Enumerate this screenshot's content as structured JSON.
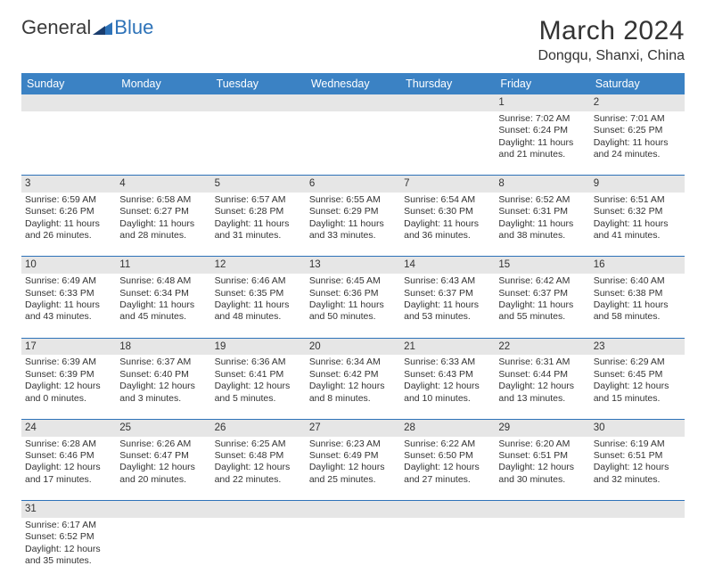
{
  "brand": {
    "general": "General",
    "blue": "Blue"
  },
  "title": {
    "month": "March 2024",
    "location": "Dongqu, Shanxi, China"
  },
  "colors": {
    "header_bg": "#3b82c4",
    "header_text": "#ffffff",
    "daynum_bg": "#e6e6e6",
    "border": "#2d72b8",
    "text": "#333333",
    "logo_blue": "#2d72b8"
  },
  "typography": {
    "month_fontsize": 30,
    "location_fontsize": 16,
    "dayheader_fontsize": 12.5,
    "cell_fontsize": 10.5,
    "daynum_fontsize": 11.5
  },
  "day_headers": [
    "Sunday",
    "Monday",
    "Tuesday",
    "Wednesday",
    "Thursday",
    "Friday",
    "Saturday"
  ],
  "weeks": [
    {
      "nums": [
        "",
        "",
        "",
        "",
        "",
        "1",
        "2"
      ],
      "cells": [
        null,
        null,
        null,
        null,
        null,
        {
          "sr": "Sunrise: 7:02 AM",
          "ss": "Sunset: 6:24 PM",
          "d1": "Daylight: 11 hours",
          "d2": "and 21 minutes."
        },
        {
          "sr": "Sunrise: 7:01 AM",
          "ss": "Sunset: 6:25 PM",
          "d1": "Daylight: 11 hours",
          "d2": "and 24 minutes."
        }
      ]
    },
    {
      "nums": [
        "3",
        "4",
        "5",
        "6",
        "7",
        "8",
        "9"
      ],
      "cells": [
        {
          "sr": "Sunrise: 6:59 AM",
          "ss": "Sunset: 6:26 PM",
          "d1": "Daylight: 11 hours",
          "d2": "and 26 minutes."
        },
        {
          "sr": "Sunrise: 6:58 AM",
          "ss": "Sunset: 6:27 PM",
          "d1": "Daylight: 11 hours",
          "d2": "and 28 minutes."
        },
        {
          "sr": "Sunrise: 6:57 AM",
          "ss": "Sunset: 6:28 PM",
          "d1": "Daylight: 11 hours",
          "d2": "and 31 minutes."
        },
        {
          "sr": "Sunrise: 6:55 AM",
          "ss": "Sunset: 6:29 PM",
          "d1": "Daylight: 11 hours",
          "d2": "and 33 minutes."
        },
        {
          "sr": "Sunrise: 6:54 AM",
          "ss": "Sunset: 6:30 PM",
          "d1": "Daylight: 11 hours",
          "d2": "and 36 minutes."
        },
        {
          "sr": "Sunrise: 6:52 AM",
          "ss": "Sunset: 6:31 PM",
          "d1": "Daylight: 11 hours",
          "d2": "and 38 minutes."
        },
        {
          "sr": "Sunrise: 6:51 AM",
          "ss": "Sunset: 6:32 PM",
          "d1": "Daylight: 11 hours",
          "d2": "and 41 minutes."
        }
      ]
    },
    {
      "nums": [
        "10",
        "11",
        "12",
        "13",
        "14",
        "15",
        "16"
      ],
      "cells": [
        {
          "sr": "Sunrise: 6:49 AM",
          "ss": "Sunset: 6:33 PM",
          "d1": "Daylight: 11 hours",
          "d2": "and 43 minutes."
        },
        {
          "sr": "Sunrise: 6:48 AM",
          "ss": "Sunset: 6:34 PM",
          "d1": "Daylight: 11 hours",
          "d2": "and 45 minutes."
        },
        {
          "sr": "Sunrise: 6:46 AM",
          "ss": "Sunset: 6:35 PM",
          "d1": "Daylight: 11 hours",
          "d2": "and 48 minutes."
        },
        {
          "sr": "Sunrise: 6:45 AM",
          "ss": "Sunset: 6:36 PM",
          "d1": "Daylight: 11 hours",
          "d2": "and 50 minutes."
        },
        {
          "sr": "Sunrise: 6:43 AM",
          "ss": "Sunset: 6:37 PM",
          "d1": "Daylight: 11 hours",
          "d2": "and 53 minutes."
        },
        {
          "sr": "Sunrise: 6:42 AM",
          "ss": "Sunset: 6:37 PM",
          "d1": "Daylight: 11 hours",
          "d2": "and 55 minutes."
        },
        {
          "sr": "Sunrise: 6:40 AM",
          "ss": "Sunset: 6:38 PM",
          "d1": "Daylight: 11 hours",
          "d2": "and 58 minutes."
        }
      ]
    },
    {
      "nums": [
        "17",
        "18",
        "19",
        "20",
        "21",
        "22",
        "23"
      ],
      "cells": [
        {
          "sr": "Sunrise: 6:39 AM",
          "ss": "Sunset: 6:39 PM",
          "d1": "Daylight: 12 hours",
          "d2": "and 0 minutes."
        },
        {
          "sr": "Sunrise: 6:37 AM",
          "ss": "Sunset: 6:40 PM",
          "d1": "Daylight: 12 hours",
          "d2": "and 3 minutes."
        },
        {
          "sr": "Sunrise: 6:36 AM",
          "ss": "Sunset: 6:41 PM",
          "d1": "Daylight: 12 hours",
          "d2": "and 5 minutes."
        },
        {
          "sr": "Sunrise: 6:34 AM",
          "ss": "Sunset: 6:42 PM",
          "d1": "Daylight: 12 hours",
          "d2": "and 8 minutes."
        },
        {
          "sr": "Sunrise: 6:33 AM",
          "ss": "Sunset: 6:43 PM",
          "d1": "Daylight: 12 hours",
          "d2": "and 10 minutes."
        },
        {
          "sr": "Sunrise: 6:31 AM",
          "ss": "Sunset: 6:44 PM",
          "d1": "Daylight: 12 hours",
          "d2": "and 13 minutes."
        },
        {
          "sr": "Sunrise: 6:29 AM",
          "ss": "Sunset: 6:45 PM",
          "d1": "Daylight: 12 hours",
          "d2": "and 15 minutes."
        }
      ]
    },
    {
      "nums": [
        "24",
        "25",
        "26",
        "27",
        "28",
        "29",
        "30"
      ],
      "cells": [
        {
          "sr": "Sunrise: 6:28 AM",
          "ss": "Sunset: 6:46 PM",
          "d1": "Daylight: 12 hours",
          "d2": "and 17 minutes."
        },
        {
          "sr": "Sunrise: 6:26 AM",
          "ss": "Sunset: 6:47 PM",
          "d1": "Daylight: 12 hours",
          "d2": "and 20 minutes."
        },
        {
          "sr": "Sunrise: 6:25 AM",
          "ss": "Sunset: 6:48 PM",
          "d1": "Daylight: 12 hours",
          "d2": "and 22 minutes."
        },
        {
          "sr": "Sunrise: 6:23 AM",
          "ss": "Sunset: 6:49 PM",
          "d1": "Daylight: 12 hours",
          "d2": "and 25 minutes."
        },
        {
          "sr": "Sunrise: 6:22 AM",
          "ss": "Sunset: 6:50 PM",
          "d1": "Daylight: 12 hours",
          "d2": "and 27 minutes."
        },
        {
          "sr": "Sunrise: 6:20 AM",
          "ss": "Sunset: 6:51 PM",
          "d1": "Daylight: 12 hours",
          "d2": "and 30 minutes."
        },
        {
          "sr": "Sunrise: 6:19 AM",
          "ss": "Sunset: 6:51 PM",
          "d1": "Daylight: 12 hours",
          "d2": "and 32 minutes."
        }
      ]
    },
    {
      "nums": [
        "31",
        "",
        "",
        "",
        "",
        "",
        ""
      ],
      "cells": [
        {
          "sr": "Sunrise: 6:17 AM",
          "ss": "Sunset: 6:52 PM",
          "d1": "Daylight: 12 hours",
          "d2": "and 35 minutes."
        },
        null,
        null,
        null,
        null,
        null,
        null
      ]
    }
  ]
}
